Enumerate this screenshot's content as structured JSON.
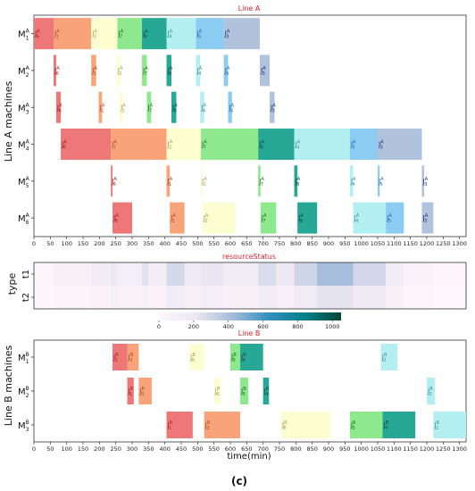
{
  "figure": {
    "caption": "(c)"
  },
  "chart_data": [
    {
      "type": "gantt",
      "title": "Line A",
      "ylabel": "Line A machines",
      "xlim": [
        0,
        1320
      ],
      "xticks": [
        0,
        50,
        100,
        150,
        200,
        250,
        300,
        350,
        400,
        450,
        500,
        550,
        600,
        650,
        700,
        750,
        800,
        850,
        900,
        950,
        1000,
        1050,
        1100,
        1150,
        1200,
        1250,
        1300
      ],
      "rows": [
        {
          "label": "M",
          "sub": "1",
          "sup": "A"
        },
        {
          "label": "M",
          "sub": "2",
          "sup": "A"
        },
        {
          "label": "M",
          "sub": "3",
          "sup": "A"
        },
        {
          "label": "M",
          "sub": "4",
          "sup": "A"
        },
        {
          "label": "M",
          "sub": "5",
          "sup": "A"
        },
        {
          "label": "M",
          "sub": "6",
          "sup": "A"
        }
      ],
      "job_colors": {
        "6": "#ee7777",
        "1": "#f9a37a",
        "2": "#fdfdd2",
        "7": "#8ee88e",
        "8": "#27a896",
        "4": "#b3eef0",
        "5": "#8ccbf2",
        "3": "#b1c2dd"
      },
      "job_text_colors": {
        "6": "#9b1c1c",
        "1": "#a34a1a",
        "2": "#9c9c55",
        "7": "#1e6e1e",
        "8": "#0a4a40",
        "4": "#3a8e9a",
        "5": "#2266aa",
        "3": "#1a3070"
      },
      "tasks": [
        {
          "row": 0,
          "job": "6",
          "start": 0,
          "end": 60
        },
        {
          "row": 0,
          "job": "1",
          "start": 60,
          "end": 175
        },
        {
          "row": 0,
          "job": "2",
          "start": 175,
          "end": 255
        },
        {
          "row": 0,
          "job": "7",
          "start": 255,
          "end": 330
        },
        {
          "row": 0,
          "job": "8",
          "start": 330,
          "end": 405
        },
        {
          "row": 0,
          "job": "4",
          "start": 405,
          "end": 495
        },
        {
          "row": 0,
          "job": "5",
          "start": 495,
          "end": 580
        },
        {
          "row": 0,
          "job": "3",
          "start": 580,
          "end": 690
        },
        {
          "row": 1,
          "job": "6",
          "start": 60,
          "end": 68
        },
        {
          "row": 1,
          "job": "1",
          "start": 175,
          "end": 190
        },
        {
          "row": 1,
          "job": "2",
          "start": 253,
          "end": 262
        },
        {
          "row": 1,
          "job": "7",
          "start": 330,
          "end": 345
        },
        {
          "row": 1,
          "job": "8",
          "start": 405,
          "end": 420
        },
        {
          "row": 1,
          "job": "4",
          "start": 495,
          "end": 508
        },
        {
          "row": 1,
          "job": "5",
          "start": 580,
          "end": 593
        },
        {
          "row": 1,
          "job": "3",
          "start": 690,
          "end": 720
        },
        {
          "row": 2,
          "job": "6",
          "start": 68,
          "end": 82
        },
        {
          "row": 2,
          "job": "1",
          "start": 198,
          "end": 208
        },
        {
          "row": 2,
          "job": "2",
          "start": 262,
          "end": 272
        },
        {
          "row": 2,
          "job": "7",
          "start": 345,
          "end": 358
        },
        {
          "row": 2,
          "job": "8",
          "start": 420,
          "end": 435
        },
        {
          "row": 2,
          "job": "4",
          "start": 508,
          "end": 520
        },
        {
          "row": 2,
          "job": "5",
          "start": 593,
          "end": 605
        },
        {
          "row": 2,
          "job": "3",
          "start": 720,
          "end": 735
        },
        {
          "row": 3,
          "job": "6",
          "start": 82,
          "end": 235
        },
        {
          "row": 3,
          "job": "1",
          "start": 235,
          "end": 405
        },
        {
          "row": 3,
          "job": "2",
          "start": 405,
          "end": 510
        },
        {
          "row": 3,
          "job": "7",
          "start": 510,
          "end": 685
        },
        {
          "row": 3,
          "job": "8",
          "start": 685,
          "end": 795
        },
        {
          "row": 3,
          "job": "4",
          "start": 795,
          "end": 965
        },
        {
          "row": 3,
          "job": "5",
          "start": 965,
          "end": 1050
        },
        {
          "row": 3,
          "job": "3",
          "start": 1050,
          "end": 1185
        },
        {
          "row": 4,
          "job": "6",
          "start": 235,
          "end": 240
        },
        {
          "row": 4,
          "job": "1",
          "start": 405,
          "end": 415
        },
        {
          "row": 4,
          "job": "2",
          "start": 510,
          "end": 515
        },
        {
          "row": 4,
          "job": "7",
          "start": 685,
          "end": 692
        },
        {
          "row": 4,
          "job": "8",
          "start": 795,
          "end": 805
        },
        {
          "row": 4,
          "job": "4",
          "start": 965,
          "end": 975
        },
        {
          "row": 4,
          "job": "5",
          "start": 1050,
          "end": 1056
        },
        {
          "row": 4,
          "job": "3",
          "start": 1185,
          "end": 1192
        },
        {
          "row": 5,
          "job": "6",
          "start": 240,
          "end": 300
        },
        {
          "row": 5,
          "job": "1",
          "start": 415,
          "end": 460
        },
        {
          "row": 5,
          "job": "2",
          "start": 515,
          "end": 615
        },
        {
          "row": 5,
          "job": "7",
          "start": 692,
          "end": 740
        },
        {
          "row": 5,
          "job": "8",
          "start": 805,
          "end": 865
        },
        {
          "row": 5,
          "job": "4",
          "start": 975,
          "end": 1075
        },
        {
          "row": 5,
          "job": "5",
          "start": 1075,
          "end": 1130
        },
        {
          "row": 5,
          "job": "3",
          "start": 1185,
          "end": 1220
        }
      ]
    },
    {
      "type": "heatmap",
      "title": "resourceStatus",
      "ylabel": "type",
      "rows": [
        "t1",
        "t2"
      ],
      "xlim": [
        0,
        1320
      ],
      "colorbar": {
        "ticks": [
          0,
          200,
          400,
          600,
          800,
          1000
        ],
        "range": [
          0,
          1050
        ]
      },
      "segments": [
        {
          "start": 0,
          "end": 60,
          "t1": 30,
          "t2": 10
        },
        {
          "start": 60,
          "end": 175,
          "t1": 90,
          "t2": 40
        },
        {
          "start": 175,
          "end": 235,
          "t1": 140,
          "t2": 60
        },
        {
          "start": 235,
          "end": 255,
          "t1": 200,
          "t2": 110
        },
        {
          "start": 255,
          "end": 330,
          "t1": 120,
          "t2": 70
        },
        {
          "start": 330,
          "end": 350,
          "t1": 240,
          "t2": 110
        },
        {
          "start": 350,
          "end": 405,
          "t1": 130,
          "t2": 60
        },
        {
          "start": 405,
          "end": 460,
          "t1": 280,
          "t2": 150
        },
        {
          "start": 460,
          "end": 510,
          "t1": 170,
          "t2": 90
        },
        {
          "start": 510,
          "end": 580,
          "t1": 220,
          "t2": 120
        },
        {
          "start": 580,
          "end": 685,
          "t1": 160,
          "t2": 80
        },
        {
          "start": 685,
          "end": 740,
          "t1": 260,
          "t2": 140
        },
        {
          "start": 740,
          "end": 795,
          "t1": 180,
          "t2": 90
        },
        {
          "start": 795,
          "end": 865,
          "t1": 300,
          "t2": 160
        },
        {
          "start": 865,
          "end": 975,
          "t1": 420,
          "t2": 230
        },
        {
          "start": 975,
          "end": 1075,
          "t1": 290,
          "t2": 170
        },
        {
          "start": 1075,
          "end": 1130,
          "t1": 140,
          "t2": 80
        },
        {
          "start": 1130,
          "end": 1220,
          "t1": 70,
          "t2": 30
        },
        {
          "start": 1220,
          "end": 1320,
          "t1": 20,
          "t2": 5
        }
      ]
    },
    {
      "type": "gantt",
      "title": "Line B",
      "ylabel": "Line B machines",
      "xlabel": "time(min)",
      "xlim": [
        0,
        1320
      ],
      "xticks": [
        0,
        50,
        100,
        150,
        200,
        250,
        300,
        350,
        400,
        450,
        500,
        550,
        600,
        650,
        700,
        750,
        800,
        850,
        900,
        950,
        1000,
        1050,
        1100,
        1150,
        1200,
        1250,
        1300
      ],
      "rows": [
        {
          "label": "M",
          "sub": "1",
          "sup": "B"
        },
        {
          "label": "M",
          "sub": "2",
          "sup": "B"
        },
        {
          "label": "M",
          "sub": "3",
          "sup": "B"
        }
      ],
      "job_colors": {
        "1": "#ee7777",
        "3": "#f9a37a",
        "6": "#fdfdd2",
        "5": "#8ee88e",
        "4": "#27a896",
        "2": "#b3eef0"
      },
      "job_text_colors": {
        "1": "#9b1c1c",
        "3": "#a34a1a",
        "6": "#9c9c55",
        "5": "#1e6e1e",
        "4": "#0a4a40",
        "2": "#3a8e9a"
      },
      "tasks": [
        {
          "row": 0,
          "job": "1",
          "start": 240,
          "end": 285
        },
        {
          "row": 0,
          "job": "3",
          "start": 285,
          "end": 320
        },
        {
          "row": 0,
          "job": "6",
          "start": 475,
          "end": 520
        },
        {
          "row": 0,
          "job": "5",
          "start": 600,
          "end": 630
        },
        {
          "row": 0,
          "job": "4",
          "start": 630,
          "end": 700
        },
        {
          "row": 0,
          "job": "2",
          "start": 1060,
          "end": 1110
        },
        {
          "row": 1,
          "job": "1",
          "start": 285,
          "end": 305
        },
        {
          "row": 1,
          "job": "3",
          "start": 320,
          "end": 360
        },
        {
          "row": 1,
          "job": "6",
          "start": 550,
          "end": 570
        },
        {
          "row": 1,
          "job": "5",
          "start": 630,
          "end": 655
        },
        {
          "row": 1,
          "job": "4",
          "start": 700,
          "end": 718
        },
        {
          "row": 1,
          "job": "2",
          "start": 1200,
          "end": 1225
        },
        {
          "row": 2,
          "job": "1",
          "start": 405,
          "end": 485
        },
        {
          "row": 2,
          "job": "3",
          "start": 520,
          "end": 630
        },
        {
          "row": 2,
          "job": "6",
          "start": 755,
          "end": 905
        },
        {
          "row": 2,
          "job": "5",
          "start": 965,
          "end": 1065
        },
        {
          "row": 2,
          "job": "4",
          "start": 1065,
          "end": 1165
        },
        {
          "row": 2,
          "job": "2",
          "start": 1220,
          "end": 1320
        }
      ]
    }
  ]
}
